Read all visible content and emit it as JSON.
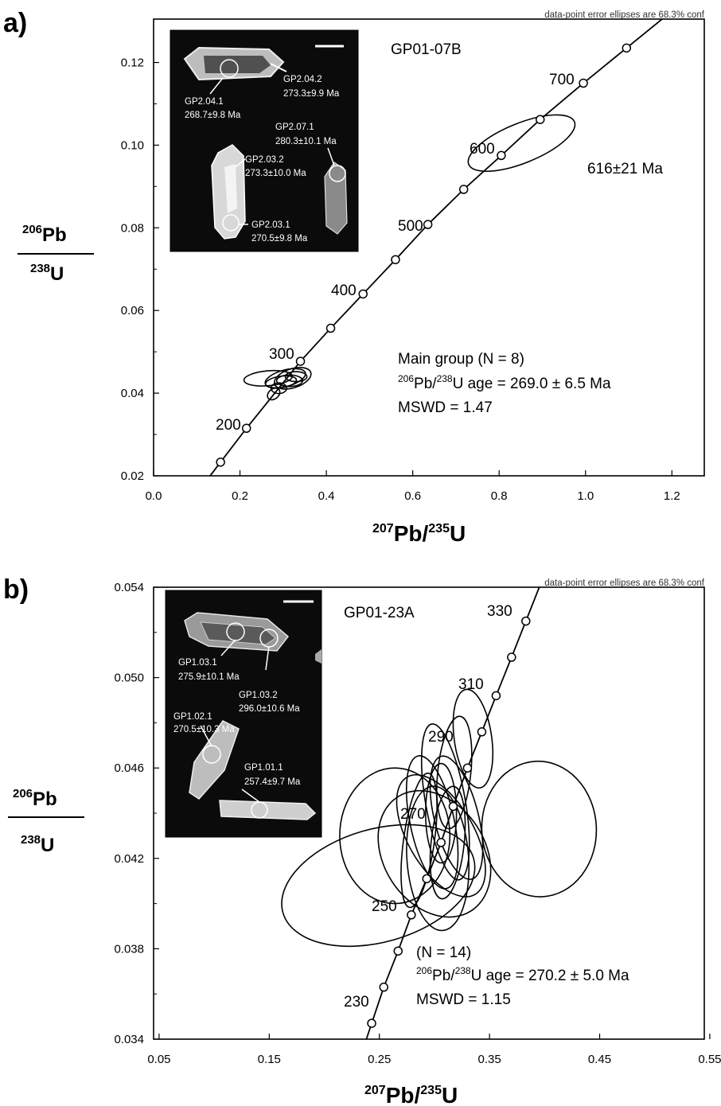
{
  "panels": [
    {
      "id": "a",
      "panel_label": "a)",
      "sample": "GP01-07B",
      "note": "data-point error ellipses are 68.3% conf",
      "ylabel": {
        "num_sup": "206",
        "num": "Pb",
        "den_sup": "238",
        "den": "U"
      },
      "xlabel": {
        "sup1": "207",
        "t1": "Pb/",
        "sup2": "235",
        "t2": "U"
      },
      "x_ticks": [
        "0.0",
        "0.2",
        "0.4",
        "0.6",
        "0.8",
        "1.0",
        "1.2"
      ],
      "y_ticks": [
        "0.02",
        "0.04",
        "0.06",
        "0.08",
        "0.10",
        "0.12"
      ],
      "concordia_labels": [
        "200",
        "300",
        "400",
        "500",
        "600",
        "700"
      ],
      "age_annotation": "616±21 Ma",
      "stats": {
        "line1": "Main group (N = 8)",
        "line2_sup1": "206",
        "line2_a": "Pb/",
        "line2_sup2": "238",
        "line2_b": "U age = 269.0 ± 6.5 Ma",
        "line3": "MSWD = 1.47"
      },
      "inset_labels": [
        {
          "id": "GP2.04.1",
          "line1": "GP2.04.1",
          "line2": "268.7±9.8 Ma"
        },
        {
          "id": "GP2.04.2",
          "line1": "GP2.04.2",
          "line2": "273.3±9.9 Ma"
        },
        {
          "id": "GP2.07.1",
          "line1": "GP2.07.1",
          "line2": "280.3±10.1 Ma"
        },
        {
          "id": "GP2.03.2",
          "line1": "GP2.03.2",
          "line2": "273.3±10.0 Ma"
        },
        {
          "id": "GP2.03.1",
          "line1": "GP2.03.1",
          "line2": "270.5±9.8 Ma"
        }
      ]
    },
    {
      "id": "b",
      "panel_label": "b)",
      "sample": "GP01-23A",
      "note": "data-point error ellipses are 68.3% conf",
      "ylabel": {
        "num_sup": "206",
        "num": "Pb",
        "den_sup": "238",
        "den": "U"
      },
      "xlabel": {
        "sup1": "207",
        "t1": "Pb/",
        "sup2": "235",
        "t2": "U"
      },
      "x_ticks": [
        "0.05",
        "0.15",
        "0.25",
        "0.35",
        "0.45",
        "0.55"
      ],
      "y_ticks": [
        "0.034",
        "0.038",
        "0.042",
        "0.046",
        "0.050",
        "0.054"
      ],
      "concordia_labels": [
        "230",
        "250",
        "270",
        "290",
        "310",
        "330"
      ],
      "stats": {
        "line1": "(N = 14)",
        "line2_sup1": "206",
        "line2_a": "Pb/",
        "line2_sup2": "238",
        "line2_b": "U age = 270.2 ± 5.0 Ma",
        "line3": "MSWD = 1.15"
      },
      "inset_labels": [
        {
          "id": "GP1.03.1",
          "line1": "GP1.03.1",
          "line2": "275.9±10.1 Ma"
        },
        {
          "id": "GP1.03.2",
          "line1": "GP1.03.2",
          "line2": "296.0±10.6 Ma"
        },
        {
          "id": "GP1.02.1",
          "line1": "GP1.02.1",
          "line2": "270.5±10.3 Ma"
        },
        {
          "id": "GP1.01.1",
          "line1": "GP1.01.1",
          "line2": "257.4±9.7 Ma"
        }
      ]
    }
  ],
  "chart_data": [
    {
      "type": "scatter",
      "title": "GP01-07B",
      "xlabel": "207Pb/235U",
      "ylabel": "206Pb/238U",
      "xlim": [
        0.0,
        1.25
      ],
      "ylim": [
        0.02,
        0.13
      ],
      "concordia_points_x": [
        0.155,
        0.215,
        0.34,
        0.41,
        0.485,
        0.56,
        0.635,
        0.718,
        0.805,
        0.895,
        0.995,
        1.095
      ],
      "concordia_points_y": [
        0.0233,
        0.0315,
        0.0477,
        0.0557,
        0.064,
        0.0723,
        0.0808,
        0.0893,
        0.0975,
        0.1062,
        0.115,
        0.1235
      ],
      "ellipses": [
        {
          "cx": 0.852,
          "cy": 0.1005,
          "rx": 0.132,
          "ry": 0.0048,
          "angle": -22
        },
        {
          "cx": 0.265,
          "cy": 0.0436,
          "rx": 0.056,
          "ry": 0.0018,
          "angle": -5
        },
        {
          "cx": 0.295,
          "cy": 0.0427,
          "rx": 0.036,
          "ry": 0.0014,
          "angle": -8
        },
        {
          "cx": 0.305,
          "cy": 0.0436,
          "rx": 0.048,
          "ry": 0.002,
          "angle": -15
        },
        {
          "cx": 0.322,
          "cy": 0.0436,
          "rx": 0.044,
          "ry": 0.0023,
          "angle": -18
        },
        {
          "cx": 0.315,
          "cy": 0.043,
          "rx": 0.03,
          "ry": 0.0014,
          "angle": 0
        },
        {
          "cx": 0.29,
          "cy": 0.0412,
          "rx": 0.018,
          "ry": 0.0013,
          "angle": 0
        },
        {
          "cx": 0.33,
          "cy": 0.044,
          "rx": 0.025,
          "ry": 0.0012,
          "angle": 0
        },
        {
          "cx": 0.278,
          "cy": 0.0398,
          "rx": 0.016,
          "ry": 0.0012,
          "angle": -40
        }
      ]
    },
    {
      "type": "scatter",
      "title": "GP01-23A",
      "xlabel": "207Pb/235U",
      "ylabel": "206Pb/238U",
      "xlim": [
        0.05,
        0.55
      ],
      "ylim": [
        0.034,
        0.054
      ],
      "concordia_points_x": [
        0.243,
        0.254,
        0.267,
        0.279,
        0.293,
        0.306,
        0.317,
        0.33,
        0.343,
        0.356,
        0.37,
        0.383
      ],
      "concordia_points_y": [
        0.0347,
        0.0363,
        0.0379,
        0.0395,
        0.0411,
        0.0427,
        0.0443,
        0.046,
        0.0476,
        0.0492,
        0.0509,
        0.0525
      ],
      "ellipses": [
        {
          "cx": 0.249,
          "cy": 0.0408,
          "rx": 0.09,
          "ry": 0.0025,
          "angle": -16
        },
        {
          "cx": 0.264,
          "cy": 0.043,
          "rx": 0.05,
          "ry": 0.003,
          "angle": 0
        },
        {
          "cx": 0.395,
          "cy": 0.0433,
          "rx": 0.052,
          "ry": 0.003,
          "angle": -3
        },
        {
          "cx": 0.3,
          "cy": 0.0422,
          "rx": 0.046,
          "ry": 0.003,
          "angle": -33
        },
        {
          "cx": 0.306,
          "cy": 0.043,
          "rx": 0.03,
          "ry": 0.003,
          "angle": -30
        },
        {
          "cx": 0.298,
          "cy": 0.0436,
          "rx": 0.02,
          "ry": 0.003,
          "angle": -12
        },
        {
          "cx": 0.31,
          "cy": 0.0445,
          "rx": 0.018,
          "ry": 0.0035,
          "angle": -10
        },
        {
          "cx": 0.318,
          "cy": 0.0458,
          "rx": 0.015,
          "ry": 0.0025,
          "angle": 6
        },
        {
          "cx": 0.32,
          "cy": 0.0438,
          "rx": 0.02,
          "ry": 0.0028,
          "angle": -14
        },
        {
          "cx": 0.303,
          "cy": 0.042,
          "rx": 0.028,
          "ry": 0.0032,
          "angle": -4
        },
        {
          "cx": 0.286,
          "cy": 0.0428,
          "rx": 0.014,
          "ry": 0.003,
          "angle": 8
        },
        {
          "cx": 0.312,
          "cy": 0.0427,
          "rx": 0.015,
          "ry": 0.0025,
          "angle": 6
        },
        {
          "cx": 0.335,
          "cy": 0.0473,
          "rx": 0.017,
          "ry": 0.0022,
          "angle": -8
        },
        {
          "cx": 0.306,
          "cy": 0.044,
          "rx": 0.014,
          "ry": 0.0022,
          "angle": 0
        }
      ]
    }
  ]
}
